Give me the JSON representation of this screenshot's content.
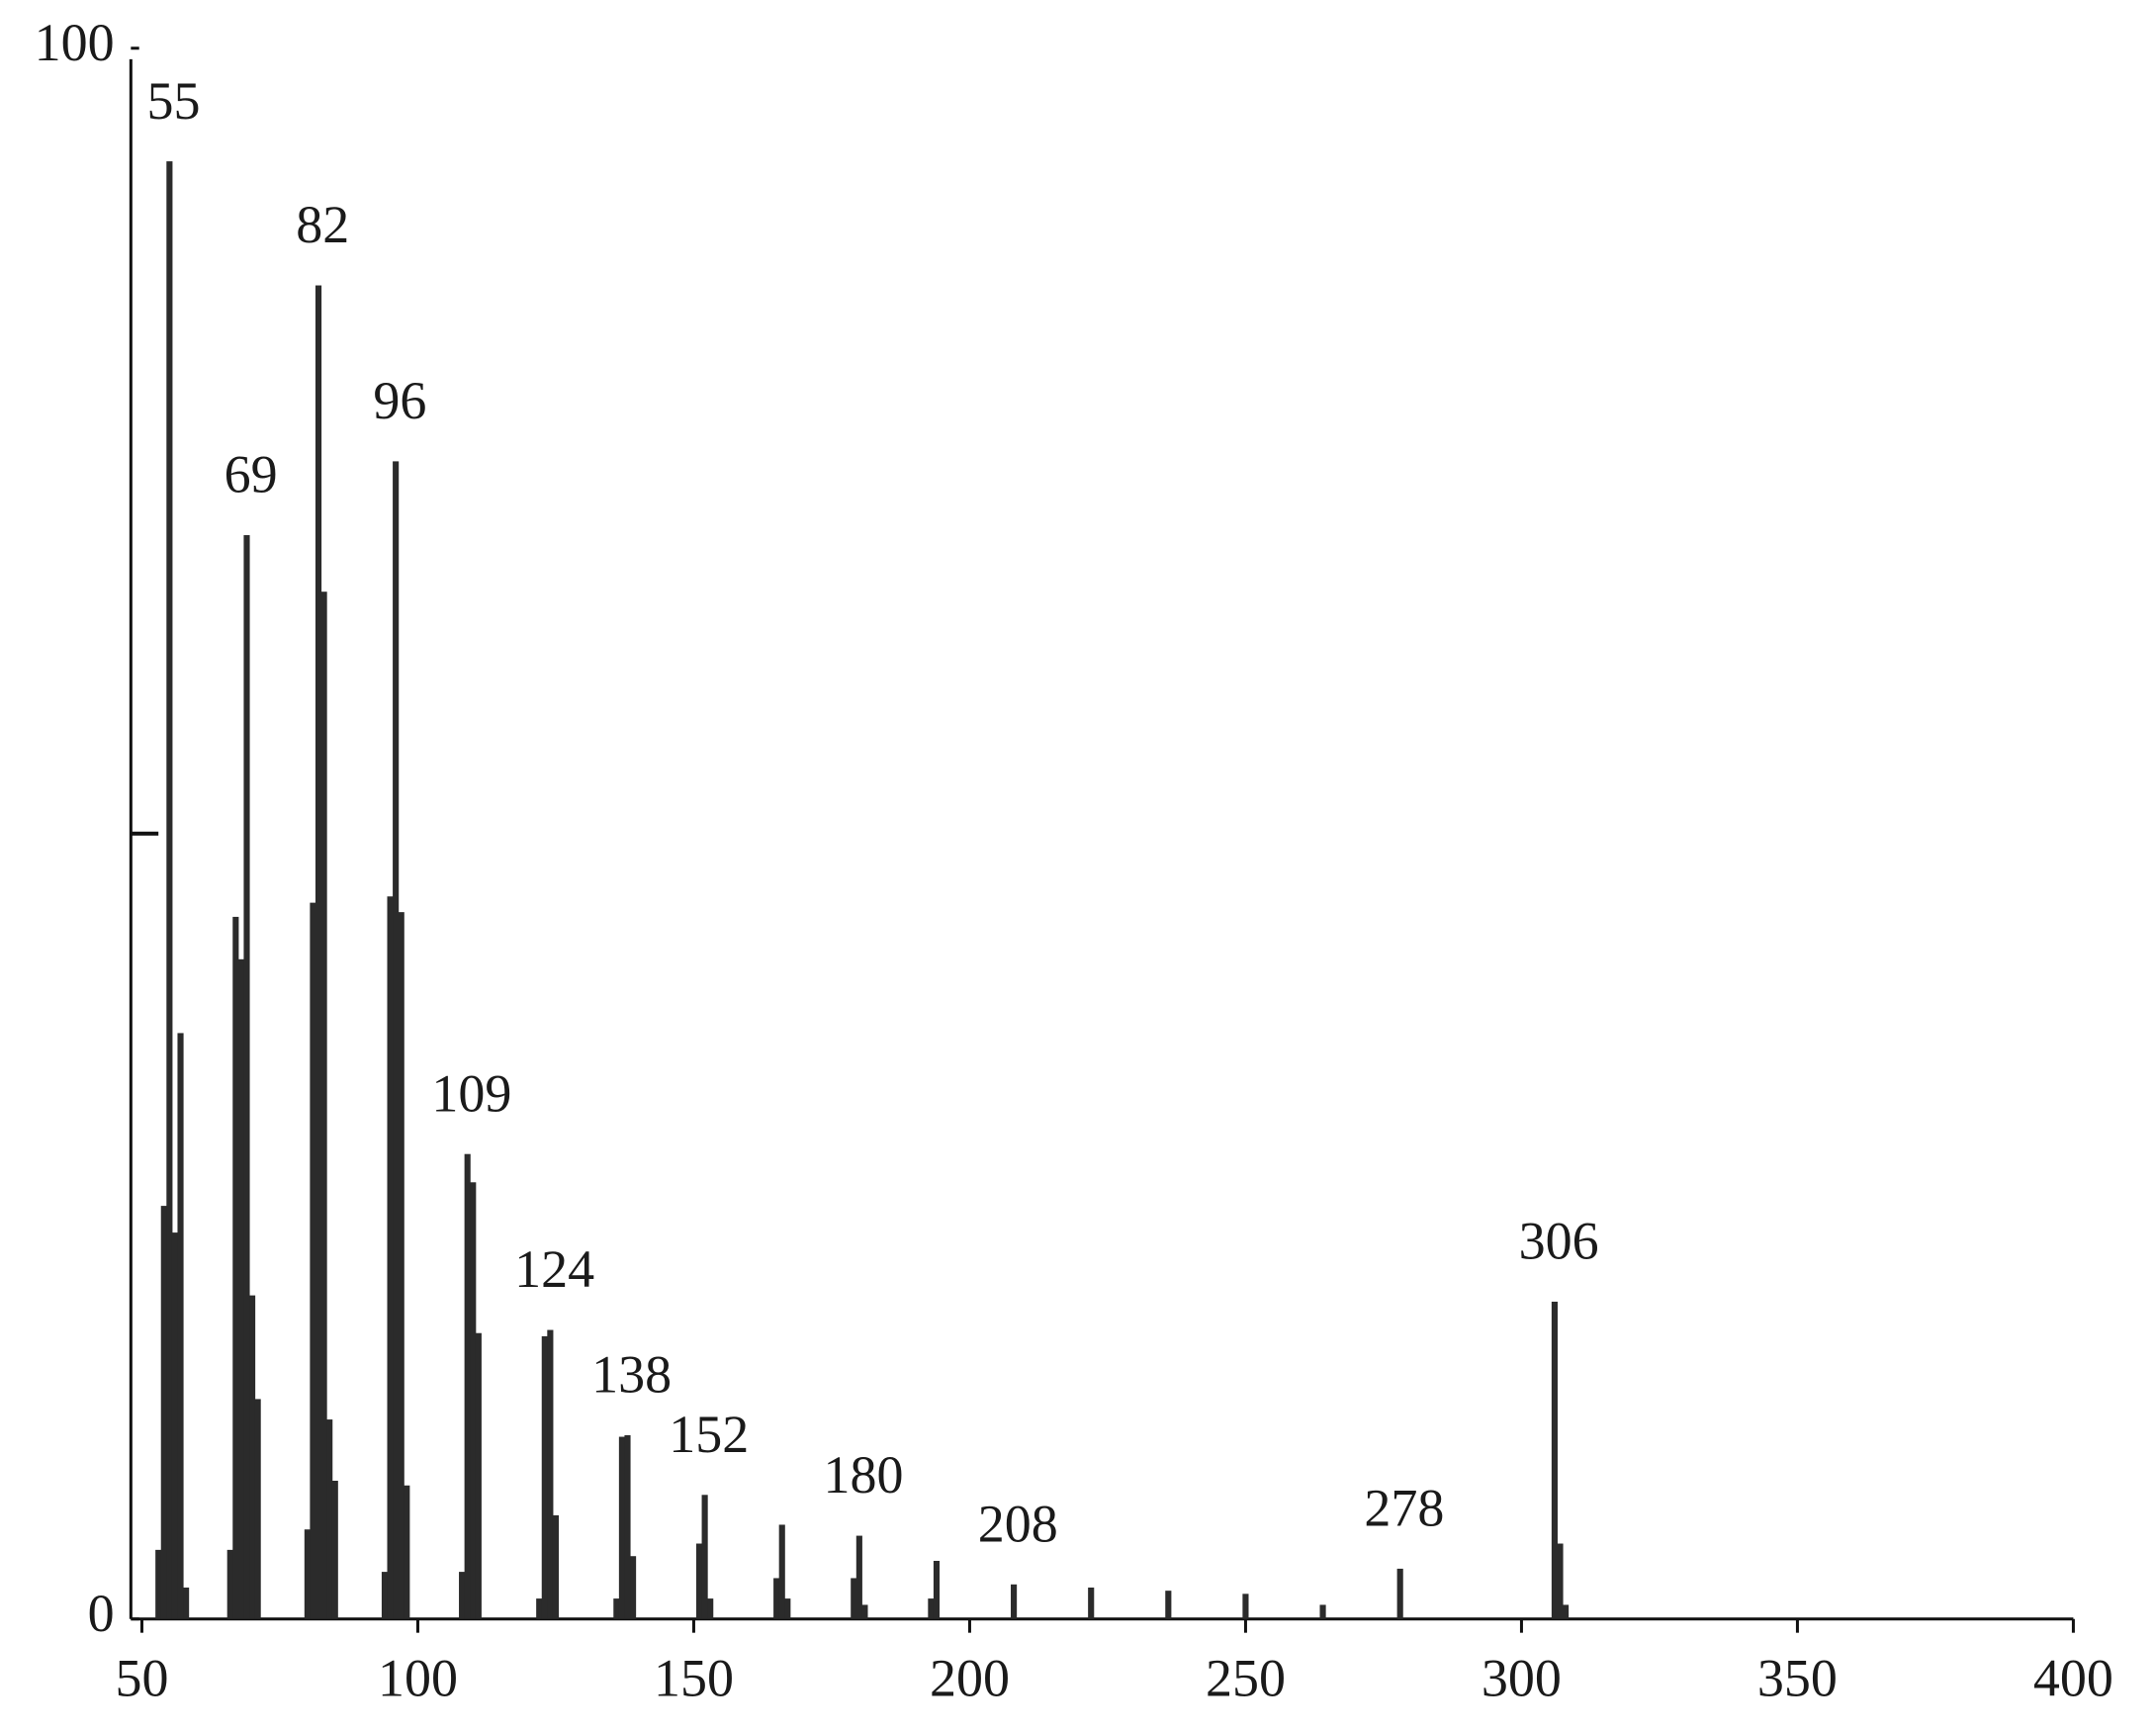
{
  "chart_data": {
    "type": "bar",
    "x": [
      53,
      54,
      55,
      56,
      57,
      58,
      66,
      67,
      68,
      69,
      70,
      71,
      80,
      81,
      82,
      83,
      84,
      85,
      94,
      95,
      96,
      97,
      98,
      108,
      109,
      110,
      111,
      122,
      123,
      124,
      125,
      136,
      137,
      138,
      139,
      151,
      152,
      153,
      165,
      166,
      167,
      179,
      180,
      181,
      193,
      194,
      208,
      222,
      236,
      250,
      264,
      278,
      306,
      307,
      308
    ],
    "values": [
      4.4,
      26.3,
      92.8,
      24.6,
      37.3,
      2,
      4.4,
      44.7,
      42,
      69,
      20.6,
      14,
      5.7,
      45.6,
      84.9,
      65.4,
      12.7,
      8.8,
      3,
      46,
      73.7,
      45,
      8.5,
      3,
      29.6,
      27.8,
      18.2,
      1.3,
      18,
      18.4,
      6.6,
      1.3,
      11.6,
      11.7,
      4,
      4.8,
      7.9,
      1.3,
      2.6,
      6,
      1.3,
      2.6,
      5.3,
      0.9,
      1.3,
      3.7,
      2.2,
      2,
      1.8,
      1.6,
      0.9,
      3.2,
      20.2,
      4.8,
      0.9
    ],
    "color": "#2b2b2b",
    "peak_labels": [
      55,
      69,
      82,
      96,
      109,
      124,
      138,
      152,
      180,
      208,
      278,
      306
    ],
    "xlim": [
      50,
      400
    ],
    "xticks": [
      50,
      100,
      150,
      200,
      250,
      300,
      350,
      400
    ],
    "ylim": [
      0,
      100
    ],
    "yticks": [
      0,
      100
    ],
    "yminor_ticks": [
      50
    ]
  }
}
